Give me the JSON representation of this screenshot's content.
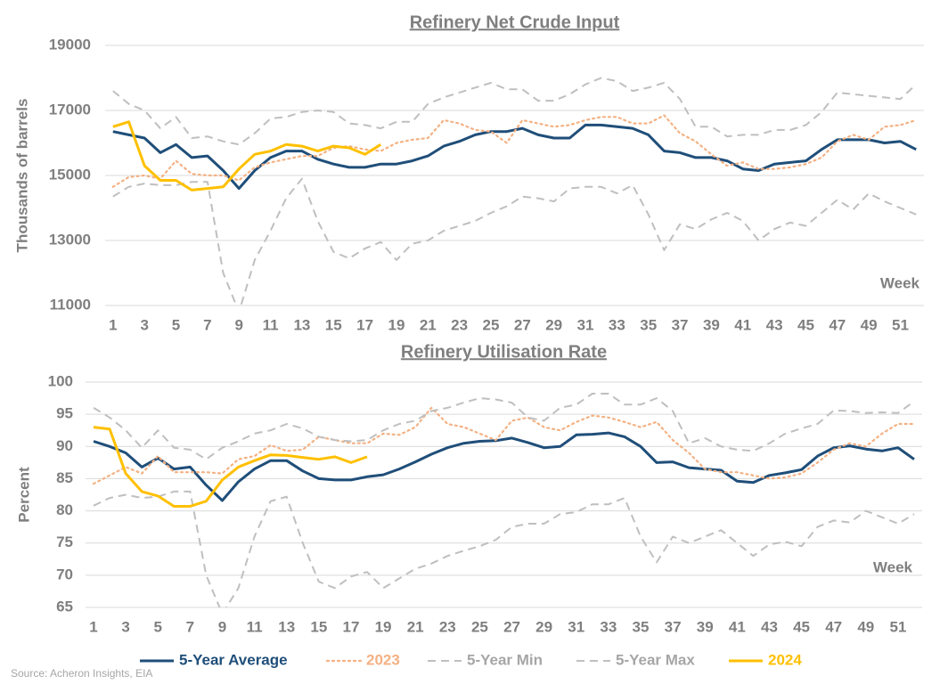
{
  "source": "Source: Acheron Insights, EIA",
  "chart_data": [
    {
      "type": "line",
      "title": "Refinery Net Crude Input",
      "y_label": "Thousands of barrels",
      "x_label": "Week",
      "x": [
        1,
        2,
        3,
        4,
        5,
        6,
        7,
        8,
        9,
        10,
        11,
        12,
        13,
        14,
        15,
        16,
        17,
        18,
        19,
        20,
        21,
        22,
        23,
        24,
        25,
        26,
        27,
        28,
        29,
        30,
        31,
        32,
        33,
        34,
        35,
        36,
        37,
        38,
        39,
        40,
        41,
        42,
        43,
        44,
        45,
        46,
        47,
        48,
        49,
        50,
        51,
        52
      ],
      "xlim": [
        0.5,
        52.5
      ],
      "xticks": [
        1,
        3,
        5,
        7,
        9,
        11,
        13,
        15,
        17,
        19,
        21,
        23,
        25,
        27,
        29,
        31,
        33,
        35,
        37,
        39,
        41,
        43,
        45,
        47,
        49,
        51
      ],
      "ylim": [
        11000,
        19000
      ],
      "yticks": [
        11000,
        13000,
        15000,
        17000,
        19000
      ],
      "grid": true,
      "series": [
        {
          "name": "5-Year Average",
          "color": "#1f4e79",
          "style": "solid",
          "values": [
            16350,
            16250,
            16150,
            15700,
            15950,
            15550,
            15600,
            15150,
            14600,
            15150,
            15550,
            15750,
            15750,
            15500,
            15350,
            15250,
            15250,
            15350,
            15350,
            15450,
            15600,
            15900,
            16050,
            16250,
            16350,
            16350,
            16450,
            16250,
            16150,
            16150,
            16550,
            16550,
            16500,
            16450,
            16250,
            15750,
            15700,
            15550,
            15550,
            15450,
            15200,
            15150,
            15350,
            15400,
            15450,
            15800,
            16100,
            16100,
            16100,
            16000,
            16050,
            15800
          ]
        },
        {
          "name": "2023",
          "color": "#f4b183",
          "style": "dotted",
          "values": [
            14650,
            14950,
            15000,
            14900,
            15450,
            15050,
            15000,
            15000,
            14850,
            15250,
            15400,
            15500,
            15600,
            15600,
            15850,
            15900,
            15800,
            15750,
            16000,
            16100,
            16150,
            16700,
            16600,
            16400,
            16350,
            16000,
            16700,
            16600,
            16500,
            16550,
            16700,
            16800,
            16800,
            16600,
            16600,
            16850,
            16300,
            16050,
            15650,
            15300,
            15400,
            15200,
            15200,
            15250,
            15350,
            15550,
            16050,
            16250,
            16100,
            16500,
            16550,
            16700
          ]
        },
        {
          "name": "5-Year Min",
          "color": "#bfbfbf",
          "style": "dashed",
          "values": [
            14350,
            14650,
            14750,
            14700,
            14700,
            14800,
            14800,
            12000,
            10800,
            12400,
            13300,
            14300,
            14900,
            13600,
            12650,
            12450,
            12750,
            12950,
            12400,
            12900,
            13000,
            13300,
            13450,
            13600,
            13850,
            14050,
            14350,
            14300,
            14200,
            14600,
            14650,
            14650,
            14450,
            14700,
            13800,
            12700,
            13500,
            13350,
            13650,
            13850,
            13600,
            13000,
            13350,
            13550,
            13450,
            13850,
            14250,
            13950,
            14450,
            14200,
            14000,
            13800
          ]
        },
        {
          "name": "5-Year Max",
          "color": "#bfbfbf",
          "style": "dashed",
          "values": [
            17600,
            17200,
            17000,
            16450,
            16800,
            16150,
            16200,
            16050,
            15950,
            16300,
            16750,
            16800,
            16950,
            17000,
            16950,
            16600,
            16550,
            16450,
            16650,
            16650,
            17200,
            17400,
            17550,
            17700,
            17850,
            17650,
            17650,
            17300,
            17300,
            17500,
            17800,
            18000,
            17900,
            17600,
            17700,
            17850,
            17350,
            16500,
            16500,
            16200,
            16250,
            16250,
            16400,
            16400,
            16550,
            16950,
            17550,
            17500,
            17450,
            17400,
            17350,
            17800
          ]
        },
        {
          "name": "2024",
          "color": "#ffc000",
          "style": "solid",
          "values": [
            16500,
            16650,
            15300,
            14850,
            14850,
            14550,
            14600,
            14650,
            15200,
            15650,
            15750,
            15950,
            15900,
            15750,
            15900,
            15850,
            15650,
            15950,
            null,
            null,
            null,
            null,
            null,
            null,
            null,
            null,
            null,
            null,
            null,
            null,
            null,
            null,
            null,
            null,
            null,
            null,
            null,
            null,
            null,
            null,
            null,
            null,
            null,
            null,
            null,
            null,
            null,
            null,
            null,
            null,
            null,
            null
          ]
        }
      ]
    },
    {
      "type": "line",
      "title": "Refinery Utilisation Rate",
      "y_label": "Percent",
      "x_label": "Week",
      "x": [
        1,
        2,
        3,
        4,
        5,
        6,
        7,
        8,
        9,
        10,
        11,
        12,
        13,
        14,
        15,
        16,
        17,
        18,
        19,
        20,
        21,
        22,
        23,
        24,
        25,
        26,
        27,
        28,
        29,
        30,
        31,
        32,
        33,
        34,
        35,
        36,
        37,
        38,
        39,
        40,
        41,
        42,
        43,
        44,
        45,
        46,
        47,
        48,
        49,
        50,
        51,
        52
      ],
      "xlim": [
        0.5,
        52.5
      ],
      "xticks": [
        1,
        3,
        5,
        7,
        9,
        11,
        13,
        15,
        17,
        19,
        21,
        23,
        25,
        27,
        29,
        31,
        33,
        35,
        37,
        39,
        41,
        43,
        45,
        47,
        49,
        51
      ],
      "ylim": [
        65,
        100
      ],
      "yticks": [
        65,
        70,
        75,
        80,
        85,
        90,
        95,
        100
      ],
      "grid": true,
      "series": [
        {
          "color": "#1f4e79",
          "style": "solid",
          "values": [
            90.8,
            90.0,
            89.0,
            86.8,
            88.2,
            86.5,
            86.8,
            84.0,
            81.6,
            84.5,
            86.5,
            87.8,
            87.8,
            86.2,
            85.0,
            84.8,
            84.8,
            85.3,
            85.6,
            86.5,
            87.6,
            88.8,
            89.8,
            90.5,
            90.8,
            90.9,
            91.3,
            90.6,
            89.8,
            90.0,
            91.8,
            91.9,
            92.1,
            91.5,
            90.0,
            87.5,
            87.6,
            86.7,
            86.5,
            86.3,
            84.6,
            84.4,
            85.5,
            85.9,
            86.4,
            88.5,
            89.8,
            90.1,
            89.6,
            89.3,
            89.8,
            88.0
          ]
        },
        {
          "color": "#f4b183",
          "style": "dotted",
          "values": [
            84.2,
            85.5,
            86.8,
            85.8,
            88.5,
            86.0,
            86.0,
            86.0,
            85.8,
            88.0,
            88.5,
            90.2,
            89.3,
            89.5,
            91.5,
            91.0,
            90.5,
            90.5,
            92.0,
            91.8,
            93.0,
            96.0,
            93.5,
            93.0,
            92.0,
            91.0,
            94.0,
            94.5,
            93.0,
            92.5,
            93.8,
            94.8,
            94.5,
            93.8,
            93.0,
            93.8,
            91.0,
            89.0,
            86.5,
            86.0,
            86.0,
            85.5,
            85.0,
            85.2,
            85.8,
            87.5,
            89.5,
            90.5,
            90.0,
            92.0,
            93.5,
            93.5
          ]
        },
        {
          "color": "#bfbfbf",
          "style": "dashed",
          "values": [
            80.8,
            82.0,
            82.5,
            82.0,
            82.2,
            83.0,
            83.0,
            70.0,
            64.0,
            68.0,
            76.0,
            81.5,
            82.2,
            75.0,
            69.0,
            68.0,
            69.8,
            70.5,
            68.0,
            69.5,
            71.0,
            71.8,
            73.0,
            73.8,
            74.5,
            75.5,
            77.5,
            78.0,
            78.0,
            79.5,
            79.8,
            81.0,
            81.0,
            82.0,
            76.0,
            72.0,
            76.0,
            75.0,
            76.0,
            77.0,
            75.0,
            73.0,
            74.8,
            75.2,
            74.5,
            77.5,
            78.5,
            78.2,
            80.0,
            79.0,
            78.0,
            79.5
          ]
        },
        {
          "color": "#bfbfbf",
          "style": "dashed",
          "values": [
            96.0,
            94.5,
            92.5,
            89.8,
            92.5,
            89.8,
            89.5,
            88.0,
            89.8,
            90.8,
            92.0,
            92.5,
            93.5,
            92.8,
            91.5,
            91.0,
            90.8,
            91.0,
            92.5,
            93.5,
            94.0,
            95.5,
            96.0,
            96.8,
            97.5,
            97.3,
            96.8,
            94.5,
            94.0,
            96.0,
            96.5,
            98.2,
            98.2,
            96.5,
            96.5,
            97.5,
            95.5,
            90.5,
            91.3,
            90.0,
            89.5,
            89.3,
            90.5,
            92.0,
            92.8,
            93.5,
            95.6,
            95.5,
            95.2,
            95.3,
            95.2,
            97.0
          ]
        },
        {
          "color": "#ffc000",
          "style": "solid",
          "values": [
            93.0,
            92.7,
            85.8,
            83.0,
            82.3,
            80.7,
            80.7,
            81.5,
            84.8,
            86.8,
            87.8,
            88.7,
            88.6,
            88.3,
            88.0,
            88.4,
            87.5,
            88.4,
            null,
            null,
            null,
            null,
            null,
            null,
            null,
            null,
            null,
            null,
            null,
            null,
            null,
            null,
            null,
            null,
            null,
            null,
            null,
            null,
            null,
            null,
            null,
            null,
            null,
            null,
            null,
            null,
            null,
            null,
            null,
            null,
            null,
            null
          ]
        }
      ]
    }
  ]
}
